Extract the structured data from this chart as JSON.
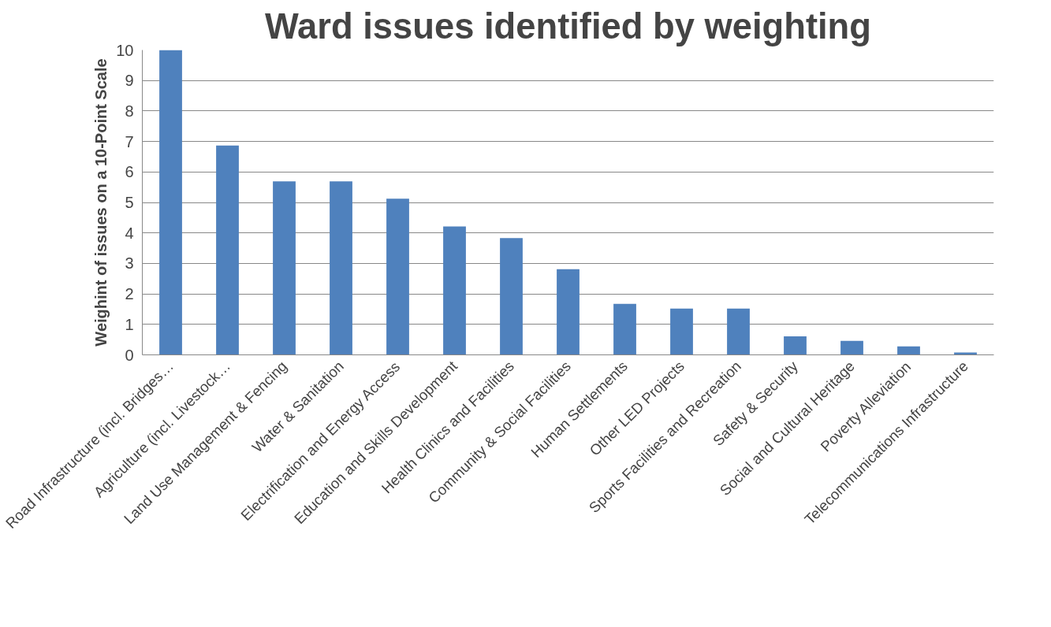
{
  "chart_data": {
    "type": "bar",
    "title": "Ward issues identified by weighting",
    "ylabel": "Weighint of issues on a 10-Point Scale",
    "categories": [
      "Road Infrastructure (incl. Bridges…",
      "Agriculture (incl. Livestock…",
      "Land Use Management & Fencing",
      "Water & Sanitation",
      "Electrification and Energy Access",
      "Education and Skills Development",
      "Health Clinics and Facilities",
      "Community & Social Facilities",
      "Human Settlements",
      "Other LED Projects",
      "Sports Facilities and Recreation",
      "Safety & Security",
      "Social and Cultural Heritage",
      "Poverty Alleviation",
      "Telecommunications Infrastructure"
    ],
    "values": [
      10,
      6.87,
      5.69,
      5.69,
      5.12,
      4.21,
      3.83,
      2.81,
      1.67,
      1.52,
      1.52,
      0.61,
      0.46,
      0.28,
      0.08
    ],
    "color": "#4f81bd",
    "ylim": [
      0,
      10
    ],
    "yticks": [
      0,
      1,
      2,
      3,
      4,
      5,
      6,
      7,
      8,
      9,
      10
    ],
    "grid": "y"
  }
}
